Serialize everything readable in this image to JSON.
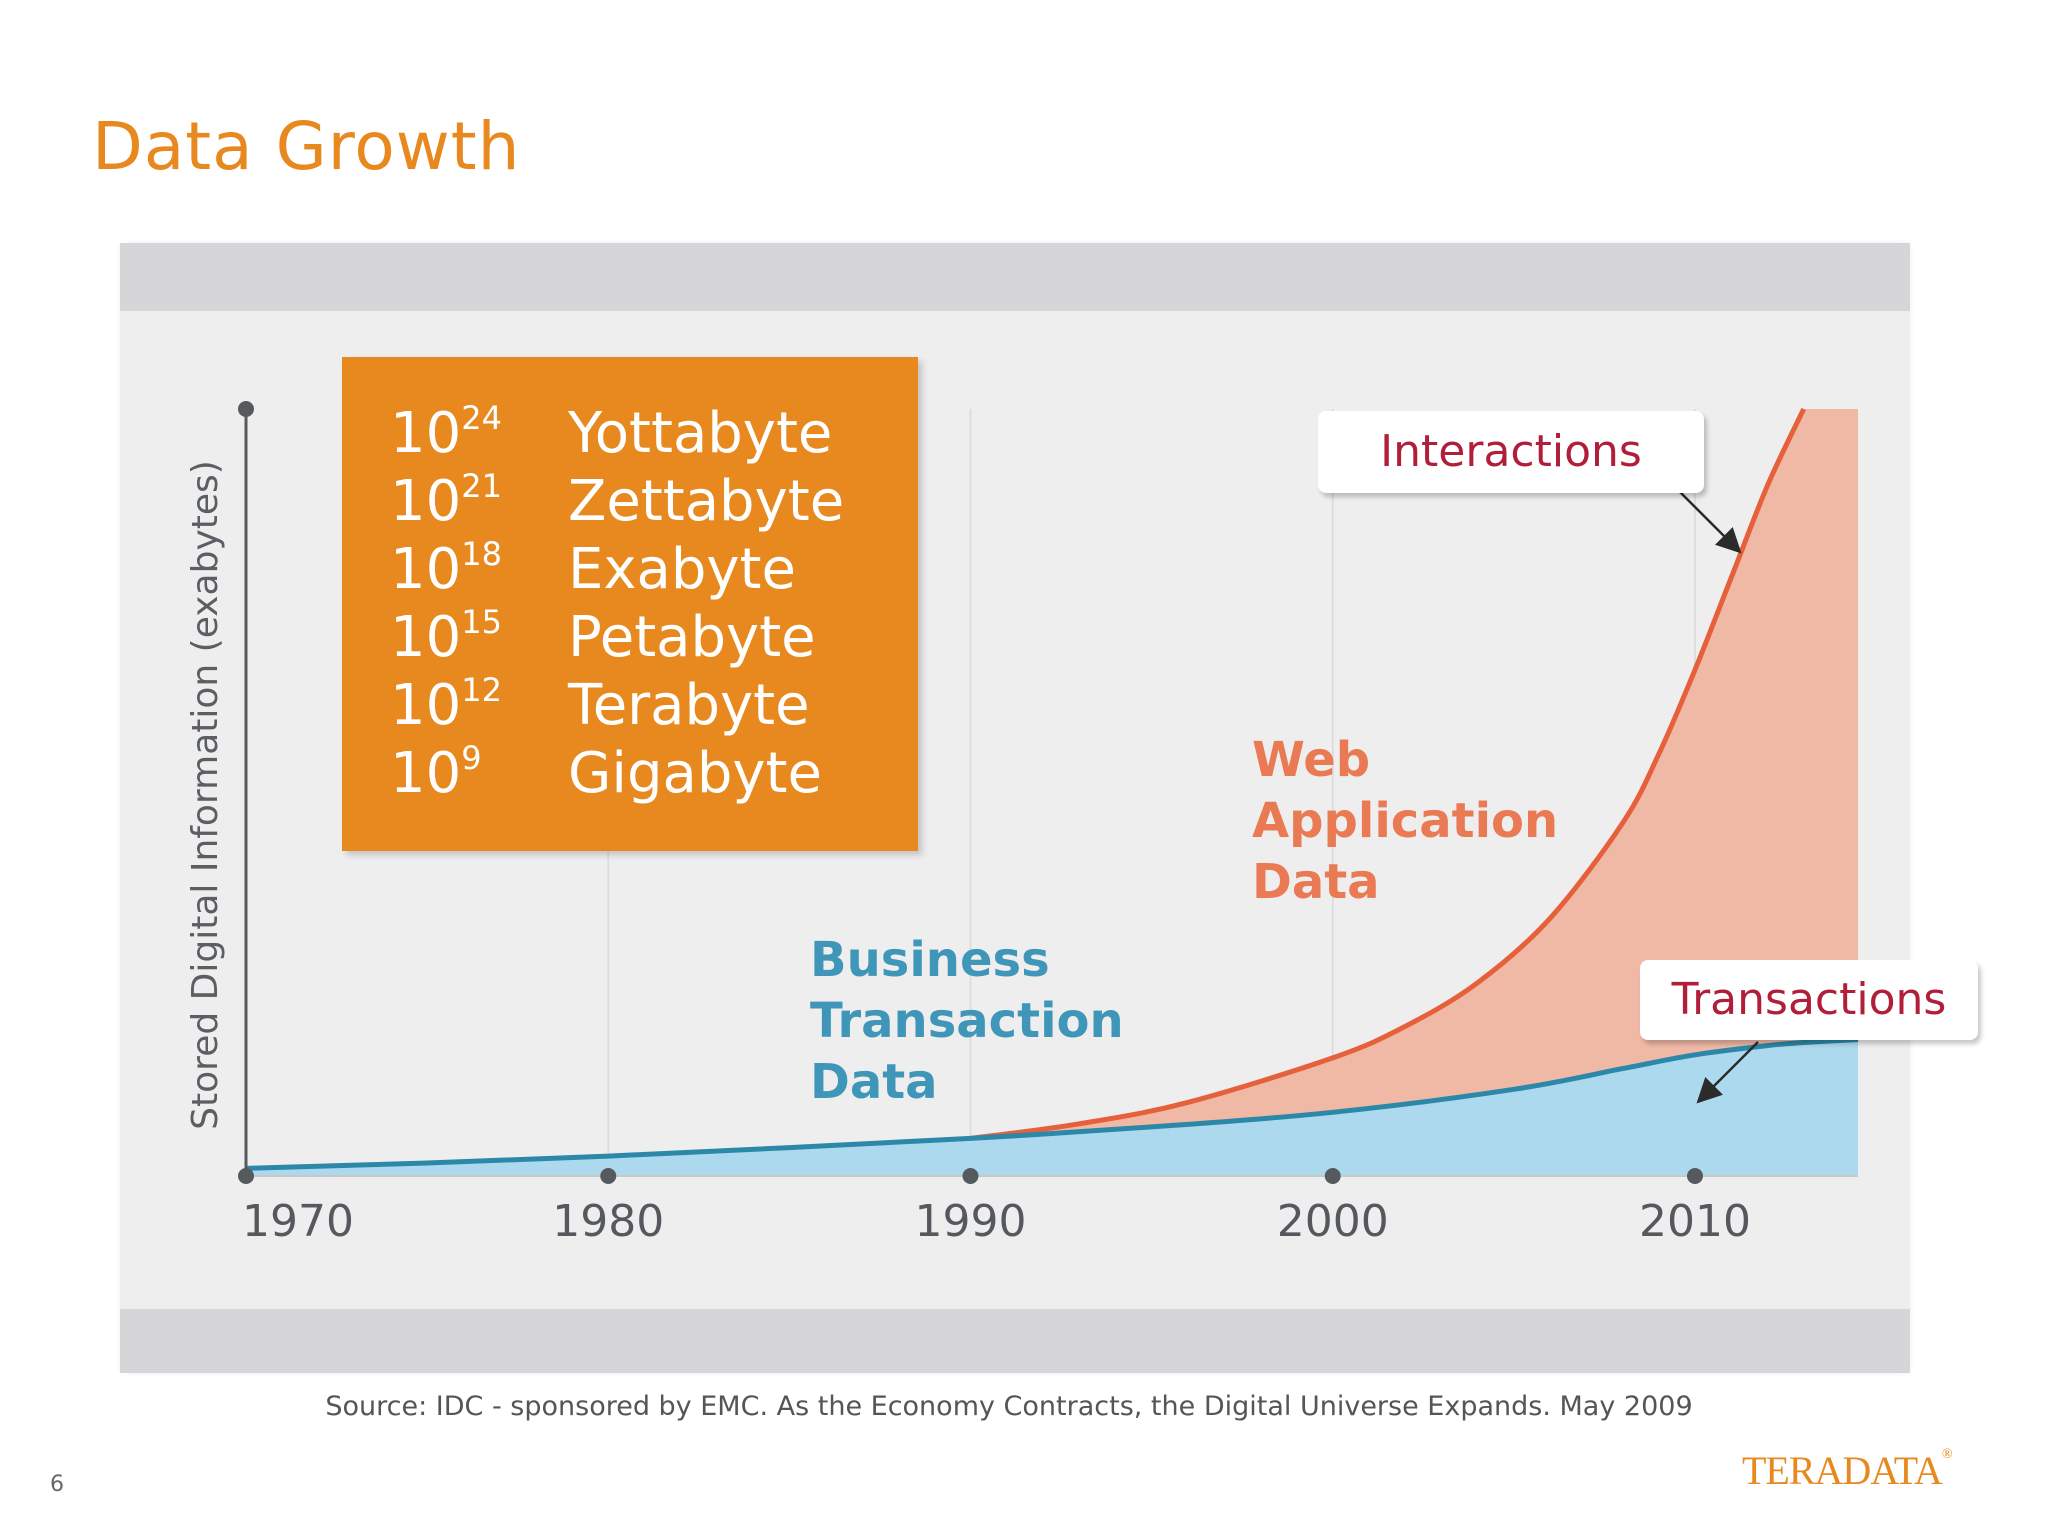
{
  "slide": {
    "title": "Data Growth",
    "source": "Source: IDC - sponsored by EMC. As the Economy Contracts, the Digital Universe Expands. May 2009",
    "page_number": "6",
    "logo_text": "TERADATA",
    "logo_mark": "®"
  },
  "units_legend": [
    {
      "base": "10",
      "exponent": "24",
      "name": "Yottabyte"
    },
    {
      "base": "10",
      "exponent": "21",
      "name": "Zettabyte"
    },
    {
      "base": "10",
      "exponent": "18",
      "name": "Exabyte"
    },
    {
      "base": "10",
      "exponent": "15",
      "name": "Petabyte"
    },
    {
      "base": "10",
      "exponent": "12",
      "name": "Terabyte"
    },
    {
      "base": "10",
      "exponent": "9",
      "name": "Gigabyte"
    }
  ],
  "callouts": {
    "interactions": "Interactions",
    "transactions": "Transactions"
  },
  "colors": {
    "accent": "#e8891f",
    "web_line": "#e5603b",
    "web_fill": "#f0b9a6",
    "business_line": "#2c88a8",
    "business_fill": "#acd9ee",
    "callout_text": "#b01e3a",
    "axis": "#555a5f"
  },
  "chart_data": {
    "type": "area",
    "ylabel": "Stored Digital Information (exabytes)",
    "xlabel": "",
    "x_ticks": [
      "1970",
      "1980",
      "1990",
      "2000",
      "2010"
    ],
    "xlim": [
      1970,
      2014.5
    ],
    "ylim": [
      0,
      100
    ],
    "y_scale_note": "relative growth; no numeric y-axis values printed",
    "grid": "vertical",
    "series": [
      {
        "name": "Business Transaction Data",
        "line_label": "Transactions",
        "points": [
          [
            1970,
            1
          ],
          [
            1975,
            1.7
          ],
          [
            1980,
            2.6
          ],
          [
            1985,
            3.7
          ],
          [
            1990,
            4.9
          ],
          [
            1995,
            6.4
          ],
          [
            2000,
            8.3
          ],
          [
            2005,
            11.3
          ],
          [
            2008,
            14
          ],
          [
            2010,
            15.8
          ],
          [
            2012,
            17
          ],
          [
            2013,
            17.4
          ],
          [
            2014.5,
            17.8
          ]
        ]
      },
      {
        "name": "Web Application Data",
        "line_label": "Interactions",
        "points": [
          [
            1990,
            4.9
          ],
          [
            1993,
            6.8
          ],
          [
            1996,
            9.6
          ],
          [
            2000,
            15.4
          ],
          [
            2002,
            19.5
          ],
          [
            2004,
            25.2
          ],
          [
            2006,
            33.6
          ],
          [
            2008,
            46
          ],
          [
            2009,
            55
          ],
          [
            2010,
            66
          ],
          [
            2011,
            78
          ],
          [
            2012,
            90
          ],
          [
            2013,
            100
          ]
        ]
      }
    ]
  }
}
